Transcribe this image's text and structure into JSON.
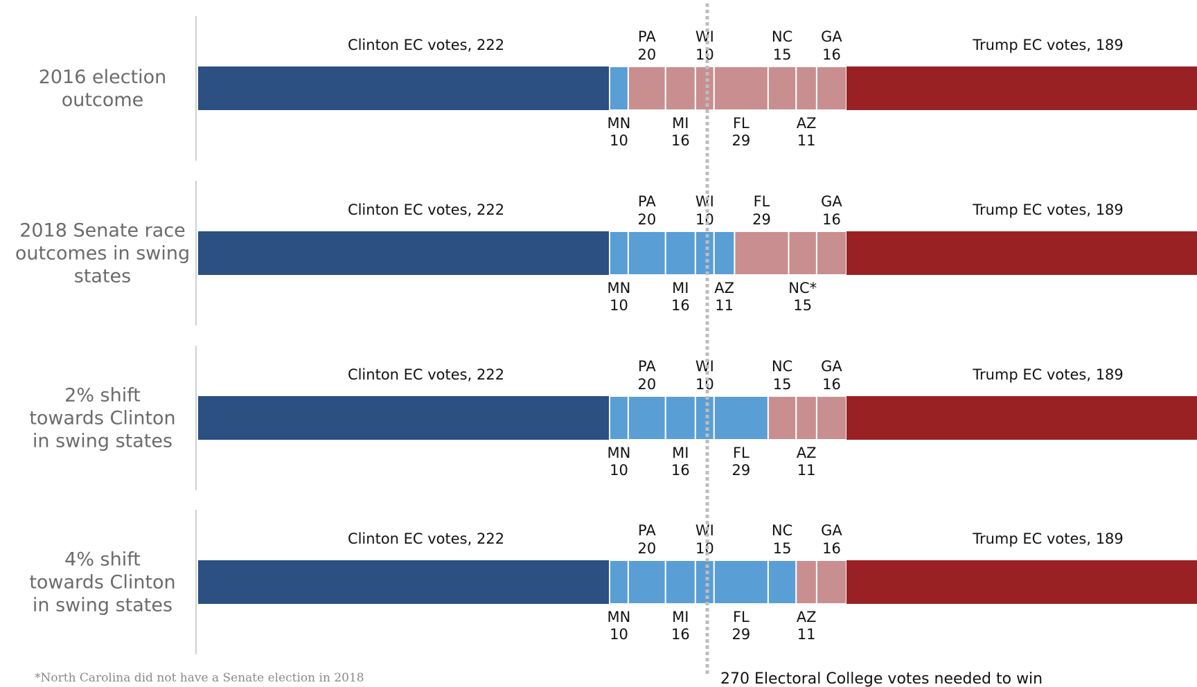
{
  "chart_data": {
    "type": "bar",
    "stacked": true,
    "orientation": "horizontal",
    "colors": {
      "clinton_base": "#2b5081",
      "clinton_swing": "#5a9ed6",
      "trump_swing": "#c98e8f",
      "trump_base": "#992124",
      "threshold_line": "#bdbdbd",
      "separator": "#ffffff"
    },
    "threshold": {
      "value": 270,
      "label": "270 Electoral College votes needed to win"
    },
    "base_labels": {
      "clinton": "Clinton EC votes, 222",
      "trump": "Trump EC votes, 189"
    },
    "base_values": {
      "clinton": 222,
      "trump": 189
    },
    "state_order": [
      "MN",
      "PA",
      "MI",
      "WI",
      "AZ",
      "FL",
      "NC",
      "GA"
    ],
    "footnote": "*North Carolina did not have a Senate election in 2018",
    "rows": [
      {
        "label_lines": [
          "2016 election",
          "outcome"
        ],
        "segments": [
          {
            "state": "MN",
            "display": "MN",
            "votes": 10,
            "winner": "clinton",
            "label_pos": "below"
          },
          {
            "state": "PA",
            "display": "PA",
            "votes": 20,
            "winner": "trump",
            "label_pos": "above"
          },
          {
            "state": "MI",
            "display": "MI",
            "votes": 16,
            "winner": "trump",
            "label_pos": "below"
          },
          {
            "state": "WI",
            "display": "WI",
            "votes": 10,
            "winner": "trump",
            "label_pos": "above"
          },
          {
            "state": "FL",
            "display": "FL",
            "votes": 29,
            "winner": "trump",
            "label_pos": "below"
          },
          {
            "state": "NC",
            "display": "NC",
            "votes": 15,
            "winner": "trump",
            "label_pos": "above"
          },
          {
            "state": "AZ",
            "display": "AZ",
            "votes": 11,
            "winner": "trump",
            "label_pos": "below"
          },
          {
            "state": "GA",
            "display": "GA",
            "votes": 16,
            "winner": "trump",
            "label_pos": "above"
          }
        ]
      },
      {
        "label_lines": [
          "2018 Senate race",
          "outcomes in swing",
          "states"
        ],
        "segments": [
          {
            "state": "MN",
            "display": "MN",
            "votes": 10,
            "winner": "clinton",
            "label_pos": "below"
          },
          {
            "state": "PA",
            "display": "PA",
            "votes": 20,
            "winner": "clinton",
            "label_pos": "above"
          },
          {
            "state": "MI",
            "display": "MI",
            "votes": 16,
            "winner": "clinton",
            "label_pos": "below"
          },
          {
            "state": "WI",
            "display": "WI",
            "votes": 10,
            "winner": "clinton",
            "label_pos": "above"
          },
          {
            "state": "AZ",
            "display": "AZ",
            "votes": 11,
            "winner": "clinton",
            "label_pos": "below"
          },
          {
            "state": "FL",
            "display": "FL",
            "votes": 29,
            "winner": "trump",
            "label_pos": "above"
          },
          {
            "state": "NC",
            "display": "NC*",
            "votes": 15,
            "winner": "trump",
            "label_pos": "below"
          },
          {
            "state": "GA",
            "display": "GA",
            "votes": 16,
            "winner": "trump",
            "label_pos": "above"
          }
        ]
      },
      {
        "label_lines": [
          "2% shift",
          "towards Clinton",
          "in swing states"
        ],
        "segments": [
          {
            "state": "MN",
            "display": "MN",
            "votes": 10,
            "winner": "clinton",
            "label_pos": "below"
          },
          {
            "state": "PA",
            "display": "PA",
            "votes": 20,
            "winner": "clinton",
            "label_pos": "above"
          },
          {
            "state": "MI",
            "display": "MI",
            "votes": 16,
            "winner": "clinton",
            "label_pos": "below"
          },
          {
            "state": "WI",
            "display": "WI",
            "votes": 10,
            "winner": "clinton",
            "label_pos": "above"
          },
          {
            "state": "FL",
            "display": "FL",
            "votes": 29,
            "winner": "clinton",
            "label_pos": "below"
          },
          {
            "state": "NC",
            "display": "NC",
            "votes": 15,
            "winner": "trump",
            "label_pos": "above"
          },
          {
            "state": "AZ",
            "display": "AZ",
            "votes": 11,
            "winner": "trump",
            "label_pos": "below"
          },
          {
            "state": "GA",
            "display": "GA",
            "votes": 16,
            "winner": "trump",
            "label_pos": "above"
          }
        ]
      },
      {
        "label_lines": [
          "4% shift",
          "towards Clinton",
          "in swing states"
        ],
        "segments": [
          {
            "state": "MN",
            "display": "MN",
            "votes": 10,
            "winner": "clinton",
            "label_pos": "below"
          },
          {
            "state": "PA",
            "display": "PA",
            "votes": 20,
            "winner": "clinton",
            "label_pos": "above"
          },
          {
            "state": "MI",
            "display": "MI",
            "votes": 16,
            "winner": "clinton",
            "label_pos": "below"
          },
          {
            "state": "WI",
            "display": "WI",
            "votes": 10,
            "winner": "clinton",
            "label_pos": "above"
          },
          {
            "state": "FL",
            "display": "FL",
            "votes": 29,
            "winner": "clinton",
            "label_pos": "below"
          },
          {
            "state": "NC",
            "display": "NC",
            "votes": 15,
            "winner": "clinton",
            "label_pos": "above"
          },
          {
            "state": "AZ",
            "display": "AZ",
            "votes": 11,
            "winner": "trump",
            "label_pos": "below"
          },
          {
            "state": "GA",
            "display": "GA",
            "votes": 16,
            "winner": "trump",
            "label_pos": "above"
          }
        ]
      }
    ]
  }
}
